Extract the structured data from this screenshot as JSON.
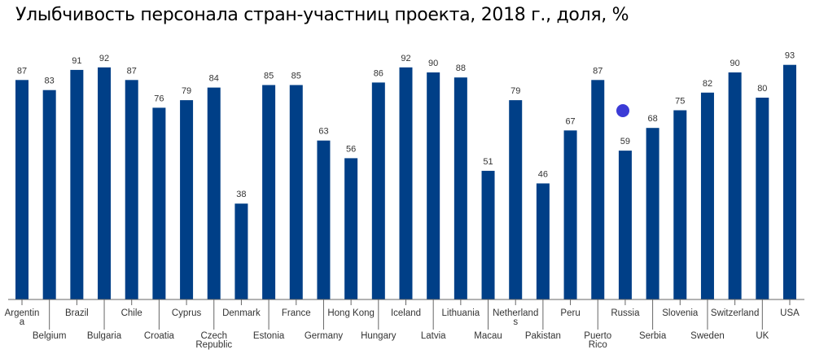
{
  "chart_data": {
    "type": "bar",
    "title": "Улыбчивость персонала стран-участниц проекта, 2018 г., доля, %",
    "xlabel": "",
    "ylabel": "",
    "ylim": [
      0,
      100
    ],
    "grid": false,
    "categories": [
      "Argentina",
      "Belgium",
      "Brazil",
      "Bulgaria",
      "Chile",
      "Croatia",
      "Cyprus",
      "Czech Republic",
      "Denmark",
      "Estonia",
      "France",
      "Germany",
      "Hong Kong",
      "Hungary",
      "Iceland",
      "Latvia",
      "Lithuania",
      "Macau",
      "Netherlands",
      "Pakistan",
      "Peru",
      "Puerto Rico",
      "Russia",
      "Serbia",
      "Slovenia",
      "Sweden",
      "Switzerland",
      "UK",
      "USA"
    ],
    "category_label_lines": [
      [
        "Argentin",
        "a"
      ],
      [
        "Belgium"
      ],
      [
        "Brazil"
      ],
      [
        "Bulgaria"
      ],
      [
        "Chile"
      ],
      [
        "Croatia"
      ],
      [
        "Cyprus"
      ],
      [
        "Czech",
        "Republic"
      ],
      [
        "Denmark"
      ],
      [
        "Estonia"
      ],
      [
        "France"
      ],
      [
        "Germany"
      ],
      [
        "Hong Kong"
      ],
      [
        "Hungary"
      ],
      [
        "Iceland"
      ],
      [
        "Latvia"
      ],
      [
        "Lithuania"
      ],
      [
        "Macau"
      ],
      [
        "Netherland",
        "s"
      ],
      [
        "Pakistan"
      ],
      [
        "Peru"
      ],
      [
        "Puerto",
        "Rico"
      ],
      [
        "Russia"
      ],
      [
        "Serbia"
      ],
      [
        "Slovenia"
      ],
      [
        "Sweden"
      ],
      [
        "Switzerland"
      ],
      [
        "UK"
      ],
      [
        "USA"
      ]
    ],
    "values": [
      87,
      83,
      91,
      92,
      87,
      76,
      79,
      84,
      38,
      85,
      85,
      63,
      56,
      86,
      92,
      90,
      88,
      51,
      79,
      46,
      67,
      87,
      59,
      68,
      75,
      82,
      90,
      80,
      93
    ],
    "colors": {
      "bar": "#003f87",
      "marker": "#3b3bd6",
      "axis": "#666666"
    }
  }
}
